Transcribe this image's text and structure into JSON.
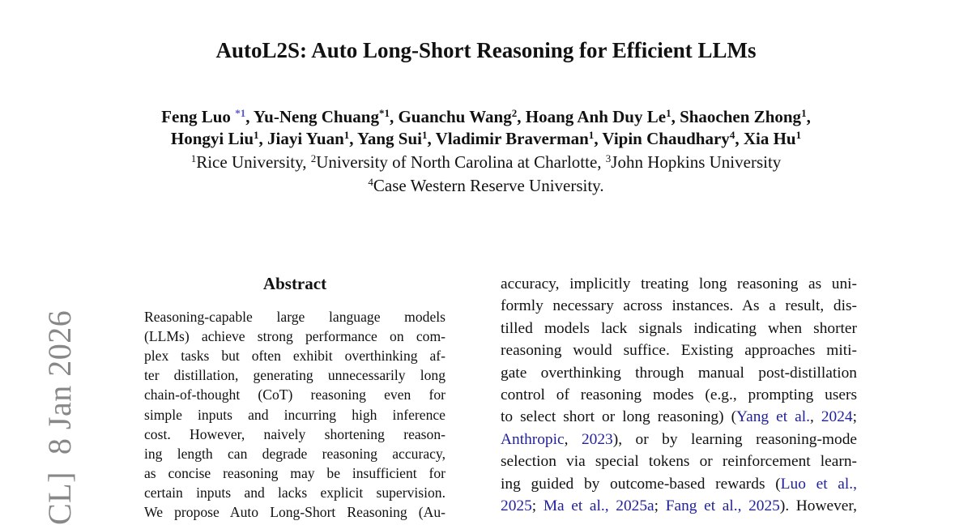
{
  "title": "AutoL2S: Auto Long-Short Reasoning for Efficient LLMs",
  "authors_line1": [
    {
      "name": "Feng Luo ",
      "sup": "*1",
      "star": true
    },
    {
      "name": ", Yu-Neng Chuang",
      "sup": "*1"
    },
    {
      "name": ", Guanchu Wang",
      "sup": "2"
    },
    {
      "name": ", Hoang Anh Duy Le",
      "sup": "1"
    },
    {
      "name": ", Shaochen Zhong",
      "sup": "1"
    },
    {
      "name": ",",
      "sup": ""
    }
  ],
  "authors_line2": [
    {
      "name": "Hongyi Liu",
      "sup": "1"
    },
    {
      "name": ", Jiayi Yuan",
      "sup": "1"
    },
    {
      "name": ", Yang Sui",
      "sup": "1"
    },
    {
      "name": ", Vladimir Braverman",
      "sup": "1"
    },
    {
      "name": ", Vipin Chaudhary",
      "sup": "4"
    },
    {
      "name": ", Xia Hu",
      "sup": "1"
    }
  ],
  "affiliations_line1": [
    {
      "sup": "1",
      "name": "Rice University, "
    },
    {
      "sup": "2",
      "name": "University of North Carolina at Charlotte, "
    },
    {
      "sup": "3",
      "name": "John Hopkins University"
    }
  ],
  "affiliations_line2": [
    {
      "sup": "4",
      "name": "Case Western Reserve University."
    }
  ],
  "abstract_heading": "Abstract",
  "arxiv_stamp": "CL]  8 Jan 2026",
  "left_column": [
    [
      {
        "t": "Reasoning-capable large language models"
      }
    ],
    [
      {
        "t": "(LLMs) achieve strong performance on com-"
      }
    ],
    [
      {
        "t": "plex tasks but often exhibit overthinking af-"
      }
    ],
    [
      {
        "t": "ter distillation, generating unnecessarily long"
      }
    ],
    [
      {
        "t": "chain-of-thought (CoT) reasoning even for"
      }
    ],
    [
      {
        "t": "simple inputs and incurring high inference"
      }
    ],
    [
      {
        "t": "cost.  However, naively shortening reason-"
      }
    ],
    [
      {
        "t": "ing length can degrade reasoning accuracy,"
      }
    ],
    [
      {
        "t": "as concise reasoning may be insufficient for"
      }
    ],
    [
      {
        "t": "certain inputs and lacks explicit supervision."
      }
    ],
    [
      {
        "t": "We propose Auto Long-Short Reasoning (Au-"
      }
    ]
  ],
  "right_column": [
    [
      {
        "t": "accuracy, implicitly treating long reasoning as uni-"
      }
    ],
    [
      {
        "t": "formly necessary across instances. As a result, dis-"
      }
    ],
    [
      {
        "t": "tilled models lack signals indicating when shorter"
      }
    ],
    [
      {
        "t": "reasoning would suffice. Existing approaches miti-"
      }
    ],
    [
      {
        "t": "gate overthinking through manual post-distillation"
      }
    ],
    [
      {
        "t": "control of reasoning modes (e.g., prompting users"
      }
    ],
    [
      {
        "t": "to select short or long reasoning) ("
      },
      {
        "t": "Yang et al.",
        "cite": true
      },
      {
        "t": ", "
      },
      {
        "t": "2024",
        "cite": true
      },
      {
        "t": ";"
      }
    ],
    [
      {
        "t": "Anthropic",
        "cite": true
      },
      {
        "t": ", "
      },
      {
        "t": "2023",
        "cite": true
      },
      {
        "t": "), or by learning reasoning-mode"
      }
    ],
    [
      {
        "t": "selection via special tokens or reinforcement learn-"
      }
    ],
    [
      {
        "t": "ing guided by outcome-based rewards ("
      },
      {
        "t": "Luo et al.,",
        "cite": true
      }
    ],
    [
      {
        "t": "2025",
        "cite": true
      },
      {
        "t": "; "
      },
      {
        "t": "Ma et al.,",
        "cite": true
      },
      {
        "t": " "
      },
      {
        "t": "2025a",
        "cite": true
      },
      {
        "t": "; "
      },
      {
        "t": "Fang et al.,",
        "cite": true
      },
      {
        "t": " "
      },
      {
        "t": "2025",
        "cite": true
      },
      {
        "t": "). However,"
      }
    ]
  ]
}
